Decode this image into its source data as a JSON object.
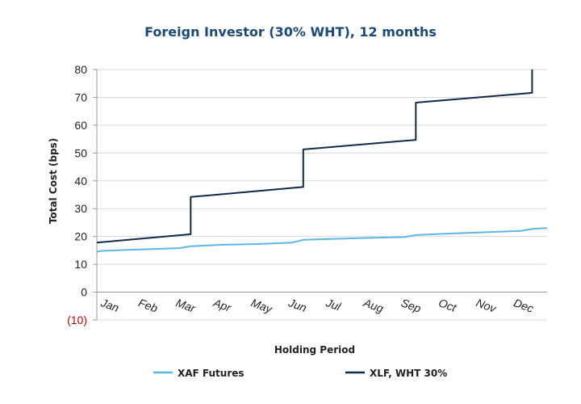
{
  "chart_data": {
    "type": "line",
    "title": "Foreign Investor (30% WHT), 12 months",
    "xlabel": "Holding Period",
    "ylabel": "Total Cost (bps)",
    "ylim": [
      -10,
      80
    ],
    "y_ticks": [
      {
        "value": 80,
        "label": "80",
        "color": "#222222"
      },
      {
        "value": 70,
        "label": "70",
        "color": "#222222"
      },
      {
        "value": 60,
        "label": "60",
        "color": "#222222"
      },
      {
        "value": 50,
        "label": "50",
        "color": "#222222"
      },
      {
        "value": 40,
        "label": "40",
        "color": "#222222"
      },
      {
        "value": 30,
        "label": "30",
        "color": "#222222"
      },
      {
        "value": 20,
        "label": "20",
        "color": "#222222"
      },
      {
        "value": 10,
        "label": "10",
        "color": "#222222"
      },
      {
        "value": 0,
        "label": "0",
        "color": "#222222"
      },
      {
        "value": -10,
        "label": "(10)",
        "color": "#c00000"
      }
    ],
    "xlim": [
      0,
      12
    ],
    "categories": [
      "Jan",
      "Feb",
      "Mar",
      "Apr",
      "May",
      "Jun",
      "Jul",
      "Aug",
      "Sep",
      "Oct",
      "Nov",
      "Dec"
    ],
    "grid": true,
    "legend_position": "bottom",
    "series": [
      {
        "name": "XAF Futures",
        "color": "#5bb8e8",
        "points": [
          [
            0,
            14.5
          ],
          [
            0.1,
            14.8
          ],
          [
            0.8,
            15.2
          ],
          [
            1.5,
            15.5
          ],
          [
            2.2,
            15.8
          ],
          [
            2.5,
            16.5
          ],
          [
            3.3,
            17
          ],
          [
            4.3,
            17.3
          ],
          [
            5.2,
            17.8
          ],
          [
            5.5,
            18.8
          ],
          [
            6.5,
            19.2
          ],
          [
            7.3,
            19.5
          ],
          [
            8.2,
            19.8
          ],
          [
            8.5,
            20.5
          ],
          [
            9.3,
            21
          ],
          [
            10.3,
            21.5
          ],
          [
            11.3,
            22
          ],
          [
            11.6,
            22.7
          ],
          [
            12,
            23
          ]
        ]
      },
      {
        "name": "XLF, WHT 30%",
        "color": "#0d2b4a",
        "points": [
          [
            0,
            17.8
          ],
          [
            2.5,
            20.8
          ],
          [
            2.5,
            34.2
          ],
          [
            5.5,
            37.8
          ],
          [
            5.5,
            51.3
          ],
          [
            8.5,
            54.7
          ],
          [
            8.5,
            68.1
          ],
          [
            11.6,
            71.6
          ],
          [
            11.6,
            80
          ]
        ]
      }
    ]
  }
}
